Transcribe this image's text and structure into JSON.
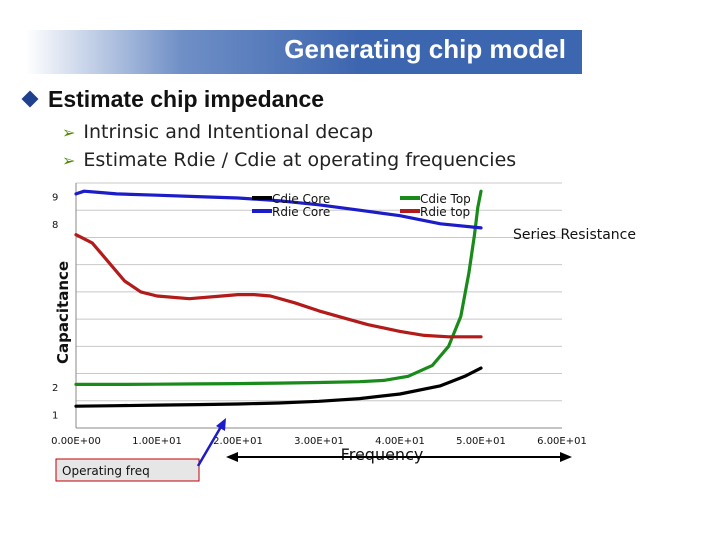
{
  "slide": {
    "title": "Generating chip model",
    "bullet": "Estimate chip impedance",
    "subbullets": [
      "Intrinsic and Intentional decap",
      "Estimate Rdie / Cdie at operating frequencies"
    ]
  },
  "chart_data": {
    "type": "line",
    "xlabel": "Frequency",
    "ylabel": "Capacitance",
    "right_label": "Series Resistance",
    "x_ticks": [
      "0.00E+00",
      "1.00E+01",
      "2.00E+01",
      "3.00E+01",
      "4.00E+01",
      "5.00E+01",
      "6.00E+01"
    ],
    "y_ticks": [
      "1",
      "2",
      "8",
      "9"
    ],
    "xlim": [
      0,
      60
    ],
    "ylim": [
      0.5,
      9.5
    ],
    "legend_position": "top",
    "series": [
      {
        "name": "Cdie Core",
        "color": "#000000",
        "x": [
          0,
          5,
          10,
          15,
          20,
          25,
          30,
          35,
          40,
          45,
          48,
          50
        ],
        "y": [
          1.3,
          1.32,
          1.34,
          1.36,
          1.38,
          1.42,
          1.48,
          1.58,
          1.75,
          2.05,
          2.4,
          2.7
        ]
      },
      {
        "name": "Cdie Top",
        "color": "#1a8a1a",
        "x": [
          0,
          5,
          10,
          15,
          20,
          25,
          30,
          35,
          38,
          41,
          44,
          46,
          47.5,
          48.5,
          49.2,
          49.6,
          50
        ],
        "y": [
          2.1,
          2.1,
          2.11,
          2.12,
          2.13,
          2.15,
          2.17,
          2.2,
          2.25,
          2.4,
          2.8,
          3.5,
          4.6,
          6.2,
          7.6,
          8.6,
          9.2
        ]
      },
      {
        "name": "Rdie Core",
        "color": "#1c1cc8",
        "x": [
          0,
          1,
          3,
          5,
          10,
          15,
          20,
          25,
          30,
          35,
          40,
          45,
          50
        ],
        "y": [
          9.1,
          9.2,
          9.15,
          9.1,
          9.05,
          9.0,
          8.95,
          8.85,
          8.7,
          8.5,
          8.3,
          8.0,
          7.85
        ]
      },
      {
        "name": "Rdie top",
        "color": "#b31a1a",
        "x": [
          0,
          2,
          4,
          6,
          8,
          10,
          14,
          18,
          20,
          22,
          24,
          27,
          30,
          33,
          36,
          40,
          43,
          46,
          48,
          50
        ],
        "y": [
          7.6,
          7.3,
          6.6,
          5.9,
          5.5,
          5.35,
          5.25,
          5.35,
          5.4,
          5.4,
          5.35,
          5.1,
          4.8,
          4.55,
          4.3,
          4.05,
          3.9,
          3.85,
          3.85,
          3.85
        ]
      }
    ],
    "annotation": "Operating freq"
  }
}
